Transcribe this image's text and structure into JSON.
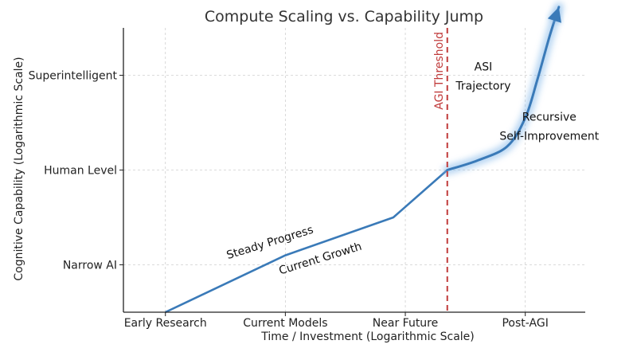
{
  "chart_data": {
    "type": "line",
    "title": "Compute Scaling vs. Capability Jump",
    "xlabel": "Time / Investment (Logarithmic Scale)",
    "ylabel": "Cognitive Capability (Logarithmic Scale)",
    "x_ticks": [
      {
        "value": 0,
        "label": "Early Research"
      },
      {
        "value": 1,
        "label": "Current Models"
      },
      {
        "value": 2,
        "label": "Near Future"
      },
      {
        "value": 3,
        "label": "Post-AGI"
      }
    ],
    "y_ticks": [
      {
        "value": 1,
        "label": "Narrow AI"
      },
      {
        "value": 2,
        "label": "Human Level"
      },
      {
        "value": 3,
        "label": "Superintelligent"
      }
    ],
    "xlim": [
      -0.35,
      3.5
    ],
    "ylim": [
      0.5,
      3.5
    ],
    "grid": true,
    "series": [
      {
        "color": "#3a7ab8",
        "points": [
          [
            0,
            0.5
          ],
          [
            1,
            1.1
          ],
          [
            1.9,
            1.5
          ],
          [
            2.35,
            2.0
          ]
        ]
      },
      {
        "color": "#3a7ab8",
        "glow": true,
        "arrow": true,
        "points": [
          [
            2.35,
            2.0
          ],
          [
            2.6,
            2.1
          ],
          [
            2.85,
            2.25
          ],
          [
            3.0,
            2.55
          ],
          [
            3.1,
            2.95
          ],
          [
            3.2,
            3.4
          ],
          [
            3.28,
            3.72
          ]
        ]
      }
    ],
    "threshold": {
      "x": 2.35,
      "label": "AGI Threshold",
      "color": "#c03a3a"
    },
    "annotations": [
      {
        "text": "Steady Progress",
        "x": 0.88,
        "y": 1.2,
        "angle": -17
      },
      {
        "text": "Current Growth",
        "x": 1.3,
        "y": 1.03,
        "angle": -17
      },
      {
        "text": "ASI",
        "x": 2.65,
        "y": 3.05
      },
      {
        "text": "Trajectory",
        "x": 2.65,
        "y": 2.85
      },
      {
        "text": "Recursive",
        "x": 3.2,
        "y": 2.52
      },
      {
        "text": "Self-Improvement",
        "x": 3.2,
        "y": 2.32
      }
    ]
  }
}
